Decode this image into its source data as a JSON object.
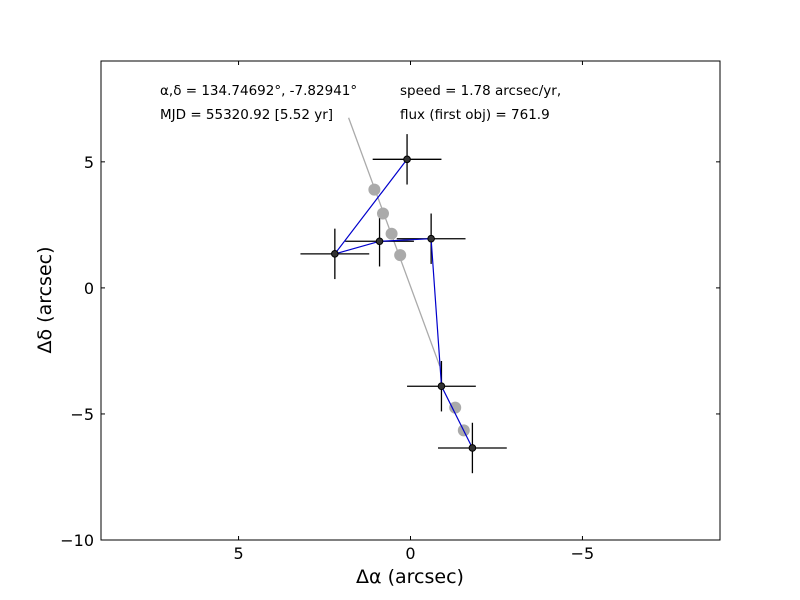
{
  "chart_data": {
    "type": "scatter",
    "title": "",
    "xlabel": "Δα (arcsec)",
    "ylabel": "Δδ (arcsec)",
    "xlim": [
      9,
      -9
    ],
    "ylim": [
      -10,
      9
    ],
    "x_inverted": true,
    "grid": false,
    "xticks": [
      {
        "value": 5,
        "label": "5"
      },
      {
        "value": 0,
        "label": "0"
      },
      {
        "value": -5,
        "label": "−5"
      }
    ],
    "yticks": [
      {
        "value": 5,
        "label": "5"
      },
      {
        "value": 0,
        "label": "0"
      },
      {
        "value": -5,
        "label": "−5"
      },
      {
        "value": -10,
        "label": "−10"
      }
    ],
    "annotations": {
      "radec": "α,δ = 134.74692°, -7.82941°",
      "mjd": "MJD = 55320.92 [5.52 yr]",
      "speed": "speed = 1.78 arcsec/yr,",
      "flux": "flux (first obj) = 761.9"
    },
    "series": [
      {
        "kind": "measured",
        "color": "#0000cc",
        "marker_color": "#333333",
        "points": [
          {
            "x": 0.1,
            "y": 5.1,
            "xerr": 1.0,
            "yerr": 1.0
          },
          {
            "x": 2.2,
            "y": 1.35,
            "xerr": 1.0,
            "yerr": 1.0
          },
          {
            "x": 0.9,
            "y": 1.85,
            "xerr": 1.0,
            "yerr": 1.0
          },
          {
            "x": -0.6,
            "y": 1.95,
            "xerr": 1.0,
            "yerr": 1.0
          },
          {
            "x": -0.9,
            "y": -3.9,
            "xerr": 1.0,
            "yerr": 1.0
          },
          {
            "x": -1.8,
            "y": -6.35,
            "xerr": 1.0,
            "yerr": 1.0
          }
        ]
      },
      {
        "kind": "predicted",
        "color": "#aaaaaa",
        "line": [
          [
            1.8,
            6.75
          ],
          [
            -0.85,
            -3.1
          ]
        ],
        "points": [
          {
            "x": 1.05,
            "y": 3.9
          },
          {
            "x": 0.8,
            "y": 2.95
          },
          {
            "x": 0.55,
            "y": 2.15
          },
          {
            "x": 0.3,
            "y": 1.3
          },
          {
            "x": -1.3,
            "y": -4.75
          },
          {
            "x": -1.55,
            "y": -5.65
          }
        ]
      }
    ]
  }
}
